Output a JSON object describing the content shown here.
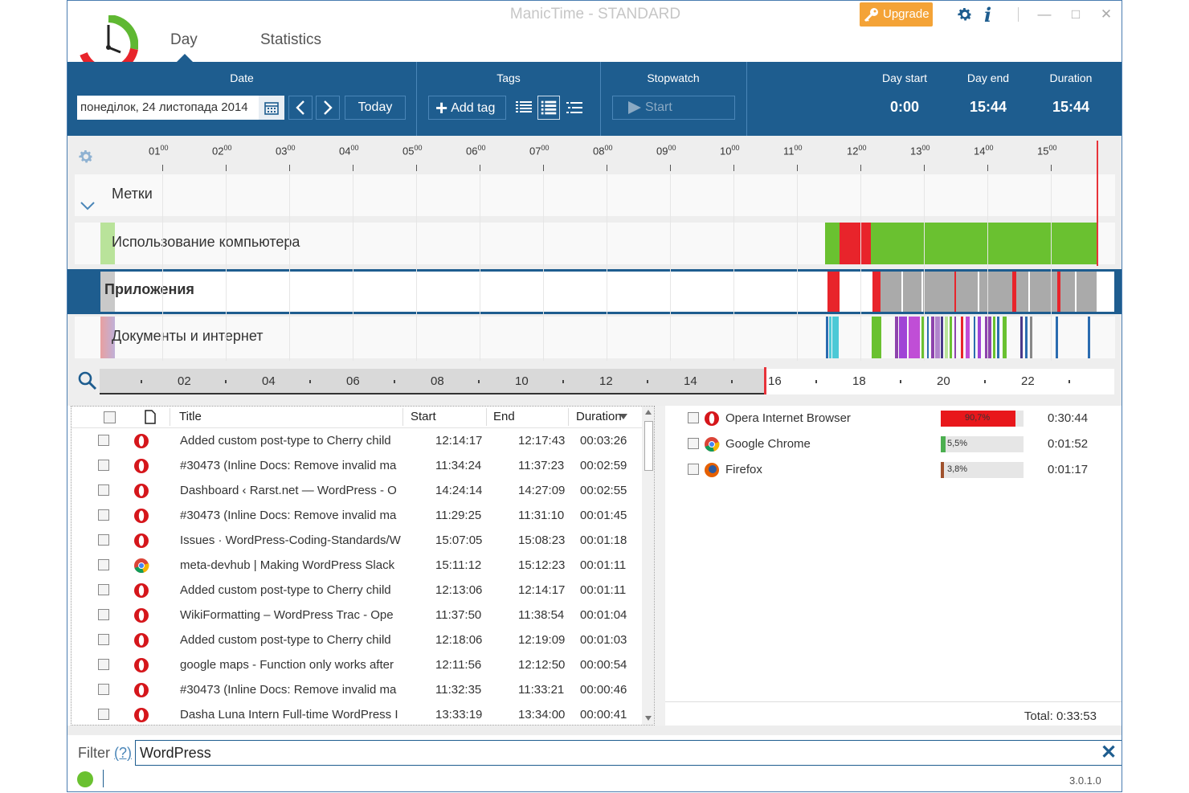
{
  "window": {
    "title": "ManicTime - STANDARD",
    "upgrade_label": "Upgrade",
    "info_label": "i"
  },
  "nav": {
    "tabs": [
      {
        "label": "Day"
      },
      {
        "label": "Statistics"
      }
    ]
  },
  "toolbar": {
    "date_heading": "Date",
    "date_value": "понеділок, 24 листопада 2014",
    "today_label": "Today",
    "tags_heading": "Tags",
    "add_tag_label": "Add tag",
    "stopwatch_heading": "Stopwatch",
    "start_label": "Start",
    "day_start_heading": "Day start",
    "day_start_value": "0:00",
    "day_end_heading": "Day end",
    "day_end_value": "15:44",
    "duration_heading": "Duration",
    "duration_value": "15:44"
  },
  "timeline": {
    "hours": [
      "01",
      "02",
      "03",
      "04",
      "05",
      "06",
      "07",
      "08",
      "09",
      "10",
      "11",
      "12",
      "13",
      "14",
      "15"
    ],
    "hour_suffix": "00",
    "lanes": [
      {
        "label": "Метки"
      },
      {
        "label": "Использование компьютера"
      },
      {
        "label": "Приложения"
      },
      {
        "label": "Документы и интернет"
      }
    ],
    "zoom_labels": [
      "02",
      "04",
      "06",
      "08",
      "10",
      "12",
      "14",
      "16",
      "18",
      "20",
      "22"
    ]
  },
  "table": {
    "headers": {
      "title": "Title",
      "start": "Start",
      "end": "End",
      "duration": "Duration"
    },
    "rows": [
      {
        "app": "opera",
        "title": "Added custom post-type to Cherry child",
        "start": "12:14:17",
        "end": "12:17:43",
        "duration": "00:03:26"
      },
      {
        "app": "opera",
        "title": "#30473 (Inline Docs: Remove invalid ma",
        "start": "11:34:24",
        "end": "11:37:23",
        "duration": "00:02:59"
      },
      {
        "app": "opera",
        "title": "Dashboard ‹ Rarst.net — WordPress - O",
        "start": "14:24:14",
        "end": "14:27:09",
        "duration": "00:02:55"
      },
      {
        "app": "opera",
        "title": "#30473 (Inline Docs: Remove invalid ma",
        "start": "11:29:25",
        "end": "11:31:10",
        "duration": "00:01:45"
      },
      {
        "app": "opera",
        "title": "Issues · WordPress-Coding-Standards/W",
        "start": "15:07:05",
        "end": "15:08:23",
        "duration": "00:01:18"
      },
      {
        "app": "chrome",
        "title": "meta-devhub | Making WordPress Slack",
        "start": "15:11:12",
        "end": "15:12:23",
        "duration": "00:01:11"
      },
      {
        "app": "opera",
        "title": "Added custom post-type to Cherry child",
        "start": "12:13:06",
        "end": "12:14:17",
        "duration": "00:01:11"
      },
      {
        "app": "opera",
        "title": "WikiFormatting – WordPress Trac - Ope",
        "start": "11:37:50",
        "end": "11:38:54",
        "duration": "00:01:04"
      },
      {
        "app": "opera",
        "title": "Added custom post-type to Cherry child",
        "start": "12:18:06",
        "end": "12:19:09",
        "duration": "00:01:03"
      },
      {
        "app": "opera",
        "title": "google maps - Function only works after",
        "start": "12:11:56",
        "end": "12:12:50",
        "duration": "00:00:54"
      },
      {
        "app": "opera",
        "title": "#30473 (Inline Docs: Remove invalid ma",
        "start": "11:32:35",
        "end": "11:33:21",
        "duration": "00:00:46"
      },
      {
        "app": "opera",
        "title": "Dasha Luna Intern Full-time WordPress I",
        "start": "13:33:19",
        "end": "13:34:00",
        "duration": "00:00:41"
      }
    ]
  },
  "browsers": {
    "items": [
      {
        "name": "Opera Internet Browser",
        "percent": 90.7,
        "percent_label": "90,7%",
        "duration": "0:30:44",
        "color": "#e8171b",
        "icon": "opera-icon"
      },
      {
        "name": "Google Chrome",
        "percent": 5.5,
        "percent_label": "5,5%",
        "duration": "0:01:52",
        "color": "#4caf50",
        "icon": "chrome-icon"
      },
      {
        "name": "Firefox",
        "percent": 3.8,
        "percent_label": "3,8%",
        "duration": "0:01:17",
        "color": "#a0522d",
        "icon": "firefox-icon"
      }
    ],
    "total": "Total: 0:33:53"
  },
  "filter": {
    "label": "Filter",
    "help": "(?)",
    "value": "WordPress"
  },
  "status": {
    "version": "3.0.1.0"
  },
  "colors": {
    "accent": "#1e5d8f",
    "active_green": "#6ac130",
    "away_red": "#e8333a",
    "idle_gray": "#aaaaaa",
    "upgrade_orange": "#f4a337"
  }
}
